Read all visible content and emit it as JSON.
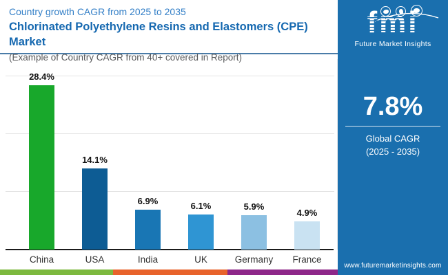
{
  "header": {
    "eyebrow": "Country growth CAGR from 2025 to 2035",
    "title": "Chlorinated Polyethylene Resins and Elastomers (CPE) Market",
    "subtitle": "(Example of Country CAGR from 40+ covered in Report)"
  },
  "chart_data": {
    "type": "bar",
    "title": "Country growth CAGR from 2025 to 2035",
    "categories": [
      "China",
      "USA",
      "India",
      "UK",
      "Germany",
      "France"
    ],
    "values": [
      28.4,
      14.1,
      6.9,
      6.1,
      5.9,
      4.9
    ],
    "value_labels": [
      "28.4%",
      "14.1%",
      "6.9%",
      "6.1%",
      "5.9%",
      "4.9%"
    ],
    "bar_colors": [
      "#18a82b",
      "#0d5c94",
      "#1976b4",
      "#2f95d3",
      "#8cc0e2",
      "#c9e2f2"
    ],
    "xlabel": "",
    "ylabel": "",
    "ylim": [
      0,
      33
    ],
    "gridlines": [
      10,
      20,
      30
    ],
    "grid": true,
    "legend": false,
    "y_axis_labels_visible": false
  },
  "sidebar": {
    "background": "#1a6fae",
    "logo_text": "fmi",
    "logo_caption": "Future Market Insights",
    "stat_value": "7.8%",
    "stat_label_line1": "Global CAGR",
    "stat_label_line2": "(2025 - 2035)",
    "website": "www.futuremarketinsights.com"
  },
  "footer_stripe_colors": [
    "#7cb93e",
    "#e8632b",
    "#8e2789"
  ],
  "accent_colors": {
    "eyebrow_blue": "#337fc7",
    "title_blue": "#1568b0",
    "subtitle_gray": "#58595b",
    "header_underline": "#4a7ca8"
  }
}
